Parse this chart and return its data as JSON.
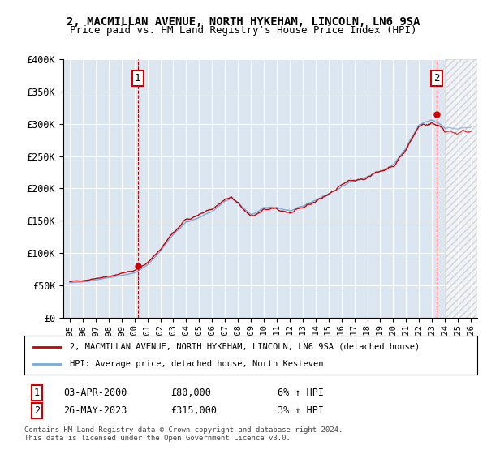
{
  "title1": "2, MACMILLAN AVENUE, NORTH HYKEHAM, LINCOLN, LN6 9SA",
  "title2": "Price paid vs. HM Land Registry's House Price Index (HPI)",
  "ylabel_ticks": [
    "£0",
    "£50K",
    "£100K",
    "£150K",
    "£200K",
    "£250K",
    "£300K",
    "£350K",
    "£400K"
  ],
  "ylim": [
    0,
    400000
  ],
  "hpi_color": "#7aaadd",
  "price_color": "#cc0000",
  "bg_color": "#dce6f1",
  "ann1_x": 2000.25,
  "ann1_y": 80000,
  "ann2_x": 2023.38,
  "ann2_y": 315000,
  "legend_line1": "2, MACMILLAN AVENUE, NORTH HYKEHAM, LINCOLN, LN6 9SA (detached house)",
  "legend_line2": "HPI: Average price, detached house, North Kesteven",
  "footer1": "Contains HM Land Registry data © Crown copyright and database right 2024.",
  "footer2": "This data is licensed under the Open Government Licence v3.0.",
  "x_ticks": [
    1995,
    1996,
    1997,
    1998,
    1999,
    2000,
    2001,
    2002,
    2003,
    2004,
    2005,
    2006,
    2007,
    2008,
    2009,
    2010,
    2011,
    2012,
    2013,
    2014,
    2015,
    2016,
    2017,
    2018,
    2019,
    2020,
    2021,
    2022,
    2023,
    2024,
    2025,
    2026
  ],
  "xlim": [
    1994.5,
    2026.5
  ],
  "hatch_start": 2024.0
}
